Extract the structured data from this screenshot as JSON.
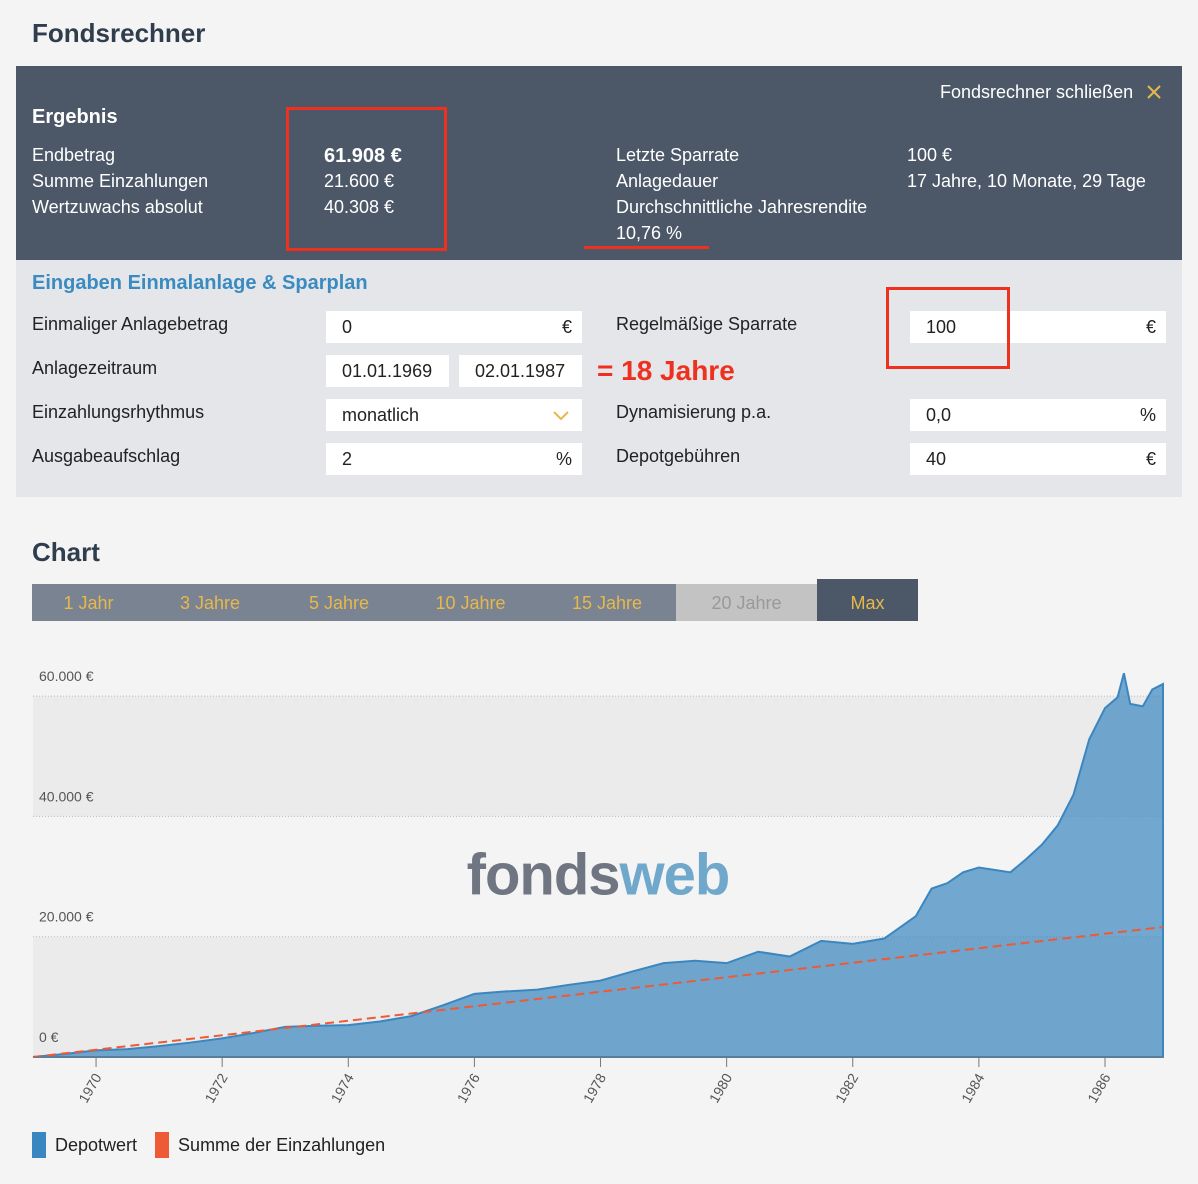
{
  "header": {
    "title": "Fondsrechner"
  },
  "result": {
    "title": "Ergebnis",
    "close_label": "Fondsrechner schließen",
    "left": [
      {
        "label": "Endbetrag",
        "value": "61.908 €"
      },
      {
        "label": "Summe Einzahlungen",
        "value": "21.600 €"
      },
      {
        "label": "Wertzuwachs absolut",
        "value": "40.308 €"
      }
    ],
    "right": [
      {
        "label": "Letzte Sparrate",
        "value": "100 €"
      },
      {
        "label": "Anlagedauer",
        "value": "17 Jahre, 10 Monate, 29 Tage"
      },
      {
        "label": "Durchschnittliche Jahresrendite",
        "value": "10,76 %"
      }
    ]
  },
  "inputs": {
    "title": "Eingaben Einmalanlage & Sparplan",
    "left": [
      {
        "label": "Einmaliger Anlagebetrag",
        "value": "0",
        "unit": "€"
      },
      {
        "label": "Anlagezeitraum",
        "values": [
          "01.01.1969",
          "02.01.1987"
        ]
      },
      {
        "label": "Einzahlungsrhythmus",
        "value": "monatlich"
      },
      {
        "label": "Ausgabeaufschlag",
        "value": "2",
        "unit": "%"
      }
    ],
    "right": [
      {
        "label": "Regelmäßige Sparrate",
        "value": "100",
        "unit": "€"
      },
      {
        "label": "Dynamisierung p.a.",
        "value": "0,0",
        "unit": "%"
      },
      {
        "label": "Depotgebühren",
        "value": "40",
        "unit": "€"
      }
    ]
  },
  "annotation": "= 18 Jahre",
  "chart_section": {
    "title": "Chart",
    "ranges": [
      "1 Jahr",
      "3 Jahre",
      "5 Jahre",
      "10 Jahre",
      "15 Jahre",
      "20 Jahre",
      "Max"
    ]
  },
  "watermark": [
    "fonds",
    "web"
  ],
  "chart_data": {
    "type": "area",
    "xlim": [
      1969,
      1986.92
    ],
    "xticks": [
      1970,
      1972,
      1974,
      1976,
      1978,
      1980,
      1982,
      1984,
      1986
    ],
    "ylim": [
      0,
      65000
    ],
    "yticks": [
      {
        "value": 0,
        "label": "0 €"
      },
      {
        "value": 20000,
        "label": "20.000 €"
      },
      {
        "value": 40000,
        "label": "40.000 €"
      },
      {
        "value": 60000,
        "label": "60.000 €"
      }
    ],
    "grid": true,
    "series": [
      {
        "name": "Depotwert",
        "color": "#3a86c0",
        "type": "area",
        "x": [
          1969,
          1969.5,
          1970,
          1970.5,
          1971,
          1971.5,
          1972,
          1972.5,
          1973,
          1973.5,
          1974,
          1974.5,
          1975,
          1975.5,
          1976,
          1976.5,
          1977,
          1977.5,
          1978,
          1978.5,
          1979,
          1979.5,
          1980,
          1980.5,
          1981,
          1981.5,
          1982,
          1982.5,
          1983,
          1983.25,
          1983.5,
          1983.75,
          1984,
          1984.5,
          1984.75,
          1985,
          1985.25,
          1985.5,
          1985.75,
          1986,
          1986.2,
          1986.3,
          1986.4,
          1986.6,
          1986.75,
          1986.92
        ],
        "values": [
          0,
          500,
          1100,
          1300,
          1800,
          2400,
          3100,
          4000,
          5000,
          5200,
          5300,
          5900,
          6800,
          8600,
          10500,
          10900,
          11200,
          12000,
          12700,
          14200,
          15600,
          16000,
          15600,
          17500,
          16700,
          19300,
          18800,
          19700,
          23400,
          28000,
          28900,
          30700,
          31500,
          30700,
          32900,
          35300,
          38500,
          43600,
          52800,
          58000,
          59800,
          63800,
          58700,
          58300,
          61100,
          62000
        ]
      },
      {
        "name": "Summe der Einzahlungen",
        "color": "#ee5a35",
        "type": "line",
        "dashed": true,
        "x": [
          1969,
          1986.92
        ],
        "values": [
          0,
          21600
        ]
      }
    ]
  }
}
